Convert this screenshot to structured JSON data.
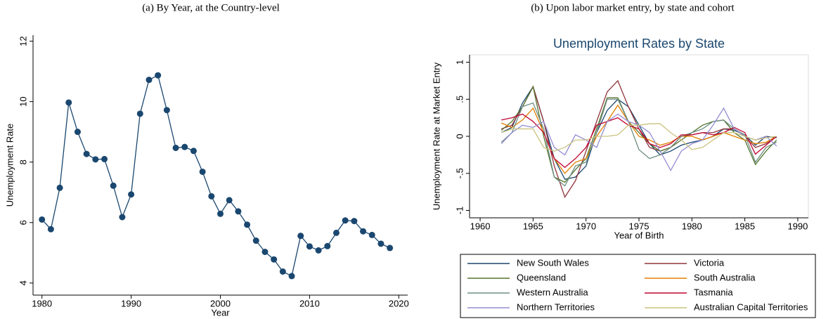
{
  "chart_data": [
    {
      "type": "line",
      "caption": "(a) By Year, at the Country-level",
      "xlabel": "Year",
      "ylabel": "Unemployment Rate",
      "x": [
        1980,
        1981,
        1982,
        1983,
        1984,
        1985,
        1986,
        1987,
        1988,
        1989,
        1990,
        1991,
        1992,
        1993,
        1994,
        1995,
        1996,
        1997,
        1998,
        1999,
        2000,
        2001,
        2002,
        2003,
        2004,
        2005,
        2006,
        2007,
        2008,
        2009,
        2010,
        2011,
        2012,
        2013,
        2014,
        2015,
        2016,
        2017,
        2018,
        2019
      ],
      "values": [
        6.1,
        5.78,
        7.15,
        9.97,
        9.0,
        8.27,
        8.09,
        8.1,
        7.22,
        6.18,
        6.93,
        9.6,
        10.72,
        10.87,
        9.72,
        8.47,
        8.5,
        8.37,
        7.68,
        6.87,
        6.29,
        6.74,
        6.37,
        5.93,
        5.4,
        5.03,
        4.78,
        4.38,
        4.23,
        5.56,
        5.21,
        5.08,
        5.22,
        5.66,
        6.07,
        6.05,
        5.71,
        5.59,
        5.3,
        5.16
      ],
      "color": "#1a476f",
      "markers": true,
      "xlim": [
        1979,
        2021
      ],
      "xticks": [
        1980,
        1990,
        2000,
        2010,
        2020
      ],
      "ylim": [
        3.6,
        12.2
      ],
      "yticks": [
        4,
        6,
        8,
        10,
        12
      ],
      "grid": false
    },
    {
      "type": "line",
      "caption": "(b) Upon labor market entry, by state and cohort",
      "title": "Unemployment Rates by State",
      "xlabel": "Year of Birth",
      "ylabel": "Unemployment Rate at Market Entry",
      "x": [
        1962,
        1963,
        1964,
        1965,
        1966,
        1967,
        1968,
        1969,
        1970,
        1971,
        1972,
        1973,
        1974,
        1975,
        1976,
        1977,
        1978,
        1979,
        1980,
        1981,
        1982,
        1983,
        1984,
        1985,
        1986,
        1987,
        1988
      ],
      "series": [
        {
          "name": "New South Wales",
          "color": "#1a476f",
          "values": [
            0.05,
            0.12,
            0.45,
            0.67,
            0.2,
            -0.3,
            -0.58,
            -0.55,
            -0.4,
            0.05,
            0.35,
            0.5,
            0.4,
            0.15,
            -0.1,
            -0.25,
            -0.2,
            -0.12,
            -0.08,
            -0.05,
            0.0,
            0.1,
            0.08,
            0.02,
            -0.12,
            0.0,
            -0.02
          ]
        },
        {
          "name": "Victoria",
          "color": "#90353b",
          "values": [
            0.1,
            0.15,
            0.4,
            0.67,
            0.2,
            -0.4,
            -0.82,
            -0.6,
            -0.2,
            0.2,
            0.6,
            0.75,
            0.4,
            0.1,
            -0.15,
            -0.2,
            -0.15,
            0.0,
            0.02,
            0.05,
            0.05,
            0.1,
            0.1,
            0.0,
            -0.15,
            -0.1,
            0.0
          ]
        },
        {
          "name": "Queensland",
          "color": "#55752f",
          "values": [
            0.08,
            0.2,
            0.4,
            0.67,
            0.0,
            -0.55,
            -0.62,
            -0.45,
            -0.3,
            0.1,
            0.52,
            0.52,
            0.2,
            0.05,
            -0.1,
            -0.2,
            -0.15,
            -0.05,
            0.05,
            0.15,
            0.2,
            0.22,
            0.05,
            -0.05,
            -0.38,
            -0.2,
            -0.05
          ]
        },
        {
          "name": "South Australia",
          "color": "#e37e00",
          "values": [
            0.18,
            0.12,
            0.22,
            0.38,
            0.05,
            -0.3,
            -0.5,
            -0.35,
            -0.3,
            0.0,
            0.2,
            0.42,
            0.2,
            0.0,
            -0.05,
            -0.12,
            -0.08,
            0.0,
            0.0,
            -0.05,
            0.0,
            0.05,
            0.0,
            -0.05,
            -0.1,
            -0.08,
            0.0
          ]
        },
        {
          "name": "Western Australia",
          "color": "#6e8e84",
          "values": [
            -0.08,
            0.05,
            0.4,
            0.45,
            0.1,
            -0.55,
            -0.67,
            -0.4,
            -0.35,
            0.05,
            0.5,
            0.5,
            0.2,
            -0.18,
            -0.3,
            -0.25,
            -0.15,
            0.0,
            0.05,
            0.1,
            0.2,
            0.22,
            0.1,
            0.02,
            -0.35,
            -0.15,
            -0.08
          ]
        },
        {
          "name": "Tasmania",
          "color": "#c10534",
          "values": [
            0.22,
            0.25,
            0.3,
            0.2,
            0.05,
            -0.3,
            -0.42,
            -0.3,
            -0.15,
            0.15,
            0.2,
            0.25,
            0.15,
            0.1,
            -0.1,
            -0.15,
            -0.1,
            0.02,
            0.02,
            0.05,
            0.02,
            0.05,
            0.12,
            0.05,
            -0.24,
            -0.12,
            0.0
          ]
        },
        {
          "name": "Northern Territories",
          "color": "#938dd2",
          "values": [
            -0.1,
            0.05,
            0.15,
            0.12,
            0.2,
            -0.15,
            -0.25,
            0.02,
            -0.05,
            -0.15,
            0.2,
            0.3,
            0.2,
            0.15,
            0.05,
            -0.2,
            -0.46,
            -0.2,
            -0.1,
            -0.05,
            0.15,
            0.38,
            0.1,
            0.0,
            -0.05,
            0.0,
            -0.13
          ]
        },
        {
          "name": "Australian Capital Territories",
          "color": "#cac27e",
          "values": [
            0.05,
            0.1,
            0.1,
            0.1,
            -0.15,
            -0.2,
            -0.15,
            -0.05,
            -0.05,
            0.0,
            0.0,
            0.02,
            0.15,
            0.15,
            0.17,
            0.17,
            0.05,
            -0.05,
            -0.18,
            -0.15,
            -0.05,
            0.05,
            0.05,
            0.0,
            -0.05,
            -0.02,
            0.0
          ]
        }
      ],
      "xlim": [
        1959,
        1991
      ],
      "xticks": [
        1960,
        1965,
        1970,
        1975,
        1980,
        1985,
        1990
      ],
      "ylim": [
        -1.1,
        1.1
      ],
      "yticks": [
        1,
        {
          "value": 0.5,
          "label": ".5"
        },
        0,
        {
          "value": -0.5,
          "label": "-.5"
        },
        -1
      ],
      "grid": false,
      "legend": "bottom"
    }
  ]
}
